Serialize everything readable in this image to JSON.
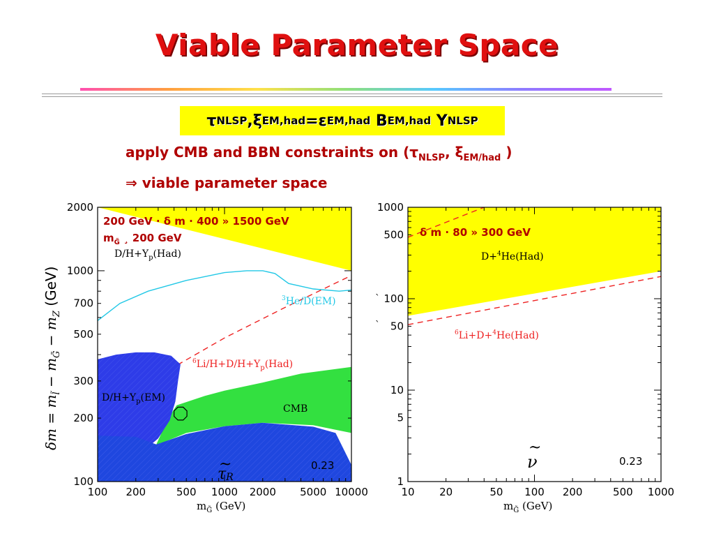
{
  "slide": {
    "title": "Viable Parameter Space",
    "formula": {
      "tau": "τ",
      "nlsp": "NLSP",
      "comma": ", ",
      "xi": "ξ",
      "emhad": "EM,had",
      "eq": "=",
      "eps": "ε",
      "b": "B",
      "y": "Y"
    },
    "line1": {
      "text": "apply CMB and BBN constraints on (",
      "tau": "τ",
      "nlsp": "NLSP",
      "comma": ", ",
      "xi": "ξ",
      "emhad": "EM/had",
      "close": " )"
    },
    "line2": {
      "arrow": "⇒",
      "text": " viable parameter space"
    }
  },
  "chart_data": [
    {
      "type": "area",
      "x_scale": "log",
      "y_scale": "log",
      "xlim": [
        100,
        10000
      ],
      "ylim": [
        100,
        2000
      ],
      "xlabel": "m",
      "xlabel_sub": "G̃",
      "xlabel_unit": " (GeV)",
      "ylabel": "δm = m − m − m   (GeV)",
      "ylabel_parts": {
        "a": "δm = m",
        "s1": "l̃",
        "b": " − m",
        "s2": "G̃",
        "c": " − m",
        "s3": "Z",
        "d": "   (GeV)"
      },
      "x_ticks": [
        100,
        200,
        500,
        1000,
        2000,
        5000,
        10000
      ],
      "x_tick_labels": [
        "100",
        "200",
        "500",
        "1000",
        "2000",
        "5000",
        "10000"
      ],
      "y_ticks": [
        100,
        200,
        300,
        500,
        700,
        1000,
        2000
      ],
      "y_tick_labels": [
        "100",
        "200",
        "300",
        "500",
        "700",
        "1000",
        "2000"
      ],
      "annotations": {
        "range1": "200 GeV · δ m · 400 » 1500 GeV",
        "range2": "m",
        "range2_sub": "G̃",
        "range2_rest": " ¸ 200 GeV",
        "dh_had": "D/H+Y",
        "dh_had_sub": "p",
        "dh_had_end": "(Had)",
        "he3": "He/D(EM)",
        "he3_sup": "3",
        "li6": "Li/H+D/H+Y",
        "li6_sup": "6",
        "li6_sub": "p",
        "li6_end": "(Had)",
        "dh_em": "D/H+Y",
        "dh_em_sub": "p",
        "dh_em_end": "(EM)",
        "cmb": "CMB",
        "nlsp_label": "τ",
        "nlsp_tilde": "~",
        "nlsp_sub": "R",
        "value": "0.23"
      },
      "series": [
        {
          "name": "D/H+Y_p(Had)",
          "kind": "excluded-fill",
          "color": "#ffff00",
          "boundary": [
            [
              100,
              2000
            ],
            [
              10000,
              1000
            ],
            [
              10000,
              2000
            ]
          ]
        },
        {
          "name": "³He/D(EM)",
          "kind": "line",
          "color": "#22c8e6",
          "points": [
            [
              100,
              580
            ],
            [
              150,
              700
            ],
            [
              250,
              800
            ],
            [
              500,
              900
            ],
            [
              1000,
              980
            ],
            [
              1500,
              1000
            ],
            [
              2000,
              1000
            ],
            [
              2500,
              970
            ],
            [
              3200,
              870
            ],
            [
              5000,
              820
            ],
            [
              8000,
              800
            ],
            [
              10000,
              810
            ]
          ]
        },
        {
          "name": "⁶Li/H+D/H+Y_p(Had)",
          "kind": "dashed-line",
          "color": "#ee2222",
          "points": [
            [
              100,
              195
            ],
            [
              200,
              250
            ],
            [
              400,
              350
            ],
            [
              1000,
              480
            ],
            [
              3000,
              670
            ],
            [
              10000,
              950
            ]
          ]
        },
        {
          "name": "CMB",
          "kind": "excluded-fill",
          "color": "#33e040",
          "boundary": [
            [
              290,
              150
            ],
            [
              360,
              200
            ],
            [
              420,
              230
            ],
            [
              700,
              255
            ],
            [
              1000,
              270
            ],
            [
              2000,
              295
            ],
            [
              4000,
              325
            ],
            [
              10000,
              350
            ],
            [
              10000,
              170
            ],
            [
              5000,
              185
            ],
            [
              2000,
              190
            ],
            [
              1000,
              183
            ],
            [
              500,
              170
            ],
            [
              300,
              150
            ]
          ]
        },
        {
          "name": "D/H+Y_p(EM)",
          "kind": "excluded-fill",
          "color": "#2e3ce8",
          "boundary": [
            [
              100,
              380
            ],
            [
              140,
              400
            ],
            [
              200,
              410
            ],
            [
              280,
              410
            ],
            [
              380,
              395
            ],
            [
              450,
              360
            ],
            [
              430,
              300
            ],
            [
              410,
              240
            ],
            [
              370,
              195
            ],
            [
              300,
              160
            ],
            [
              200,
              130
            ],
            [
              140,
              110
            ],
            [
              100,
              105
            ]
          ]
        },
        {
          "name": "lower",
          "kind": "excluded-fill",
          "color": "#1f47df",
          "boundary": [
            [
              100,
              100
            ],
            [
              100,
              165
            ],
            [
              200,
              163
            ],
            [
              290,
              150
            ],
            [
              500,
              168
            ],
            [
              1000,
              183
            ],
            [
              2000,
              190
            ],
            [
              5000,
              182
            ],
            [
              7500,
              170
            ],
            [
              10000,
              120
            ],
            [
              10000,
              100
            ]
          ]
        }
      ],
      "marker": {
        "x": 450,
        "y": 210,
        "shape": "octagon"
      }
    },
    {
      "type": "area",
      "x_scale": "log",
      "y_scale": "log",
      "xlim": [
        10,
        1000
      ],
      "ylim": [
        1,
        1000
      ],
      "xlabel": "m",
      "xlabel_sub": "G̃",
      "xlabel_unit": " (GeV)",
      "x_ticks": [
        10,
        20,
        50,
        100,
        200,
        500,
        1000
      ],
      "x_tick_labels": [
        "10",
        "20",
        "50",
        "100",
        "200",
        "500",
        "1000"
      ],
      "y_ticks": [
        1,
        5,
        10,
        50,
        100,
        500,
        1000
      ],
      "y_tick_labels": [
        "1",
        "5",
        "10",
        "50",
        "100",
        "500",
        "1000"
      ],
      "annotations": {
        "range": "δ m · 80 » 300 GeV",
        "d_he4": "D+",
        "d_he4_sup": "4",
        "d_he4_end": "He(Had)",
        "li6": "Li+D+",
        "li6_sup": "6",
        "li6_sup2": "4",
        "li6_end": "He(Had)",
        "nlsp_label": "ν",
        "nlsp_tilde": "~",
        "value": "0.23",
        "tick_mark": "`",
        "tick_mark2": "`"
      },
      "series": [
        {
          "name": "D+⁴He(Had)",
          "kind": "excluded-fill",
          "color": "#ffff00",
          "boundary": [
            [
              10,
              1000
            ],
            [
              10,
              65
            ],
            [
              1000,
              200
            ],
            [
              1000,
              1000
            ]
          ]
        },
        {
          "name": "⁶Li+D+⁴He(Had)",
          "kind": "dashed-line",
          "color": "#ee2222",
          "points": [
            [
              10,
              52
            ],
            [
              1000,
              175
            ]
          ]
        },
        {
          "name": "upper",
          "kind": "dashed-line",
          "color": "#ee2222",
          "points": [
            [
              10,
              470
            ],
            [
              40,
              1000
            ]
          ]
        }
      ]
    }
  ]
}
